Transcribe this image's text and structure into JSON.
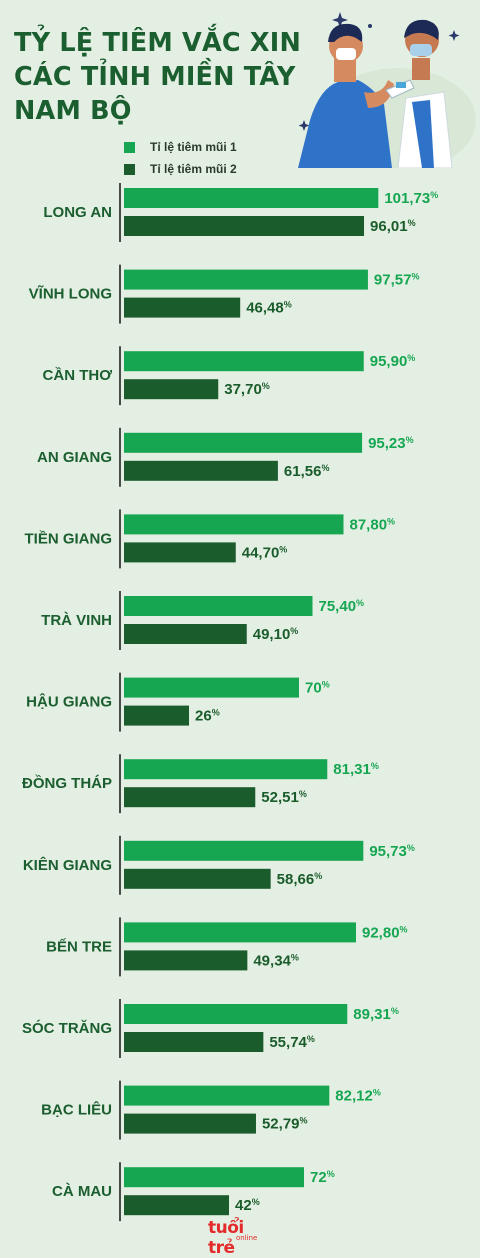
{
  "title_lines": [
    "TỶ LỆ TIÊM VẮC XIN",
    "CÁC TỈNH MIỀN TÂY",
    "NAM BỘ"
  ],
  "colors": {
    "background": "#e4efe3",
    "title": "#1b5e2f",
    "dose1": "#16a652",
    "dose2": "#1a5c2b",
    "axis": "#222222"
  },
  "logo": {
    "text": "tuổi trẻ",
    "sub": "online"
  },
  "chart_data": {
    "type": "bar",
    "orientation": "horizontal",
    "title": "TỶ LỆ TIÊM VẮC XIN CÁC TỈNH MIỀN TÂY NAM BỘ",
    "categories": [
      "LONG AN",
      "VĨNH LONG",
      "CẦN THƠ",
      "AN GIANG",
      "TIỀN GIANG",
      "TRÀ VINH",
      "HẬU GIANG",
      "ĐỒNG THÁP",
      "KIÊN GIANG",
      "BẾN TRE",
      "SÓC TRĂNG",
      "BẠC LIÊU",
      "CÀ MAU"
    ],
    "series": [
      {
        "name": "Tỉ lệ tiêm mũi 1",
        "values": [
          101.73,
          97.57,
          95.9,
          95.23,
          87.8,
          75.4,
          70,
          81.31,
          95.73,
          92.8,
          89.31,
          82.12,
          72
        ],
        "labels": [
          "101,73%",
          "97,57%",
          "95,90%",
          "95,23%",
          "87,80%",
          "75,40%",
          "70%",
          "81,31%",
          "95,73%",
          "92,80%",
          "89,31%",
          "82,12%",
          "72%"
        ]
      },
      {
        "name": "Tỉ lệ tiêm mũi 2",
        "values": [
          96.01,
          46.48,
          37.7,
          61.56,
          44.7,
          49.1,
          26,
          52.51,
          58.66,
          49.34,
          55.74,
          52.79,
          42
        ],
        "labels": [
          "96,01%",
          "46,48%",
          "37,70%",
          "61,56%",
          "44,70%",
          "49,10%",
          "26%",
          "52,51%",
          "58,66%",
          "49,34%",
          "55,74%",
          "52,79%",
          "42%"
        ]
      }
    ],
    "xlim": [
      0,
      110
    ],
    "grid": false,
    "legend": "top-left"
  }
}
